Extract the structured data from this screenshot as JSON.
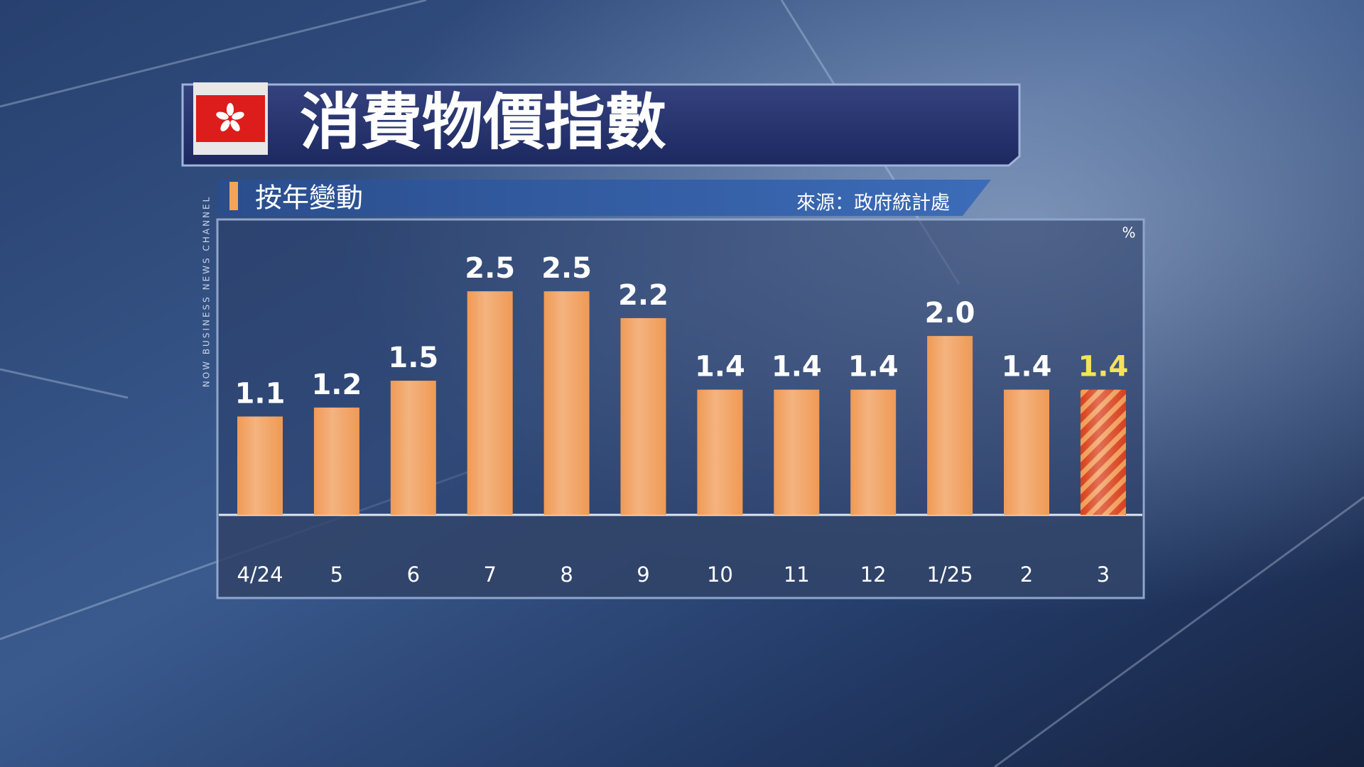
{
  "chart_data": {
    "type": "bar",
    "title": "消費物價指數",
    "subtitle": "按年變動",
    "source": "來源：政府統計處",
    "unit": "%",
    "channel": "NOW BUSINESS NEWS CHANNEL",
    "categories": [
      "4/24",
      "5",
      "6",
      "7",
      "8",
      "9",
      "10",
      "11",
      "12",
      "1/25",
      "2",
      "3"
    ],
    "values": [
      1.1,
      1.2,
      1.5,
      2.5,
      2.5,
      2.2,
      1.4,
      1.4,
      1.4,
      2.0,
      1.4,
      1.4
    ],
    "value_labels": [
      "1.1",
      "1.2",
      "1.5",
      "2.5",
      "2.5",
      "2.2",
      "1.4",
      "1.4",
      "1.4",
      "2.0",
      "1.4",
      "1.4"
    ],
    "color": "#f09a55",
    "colors": [
      "#f09a55",
      "#f09a55",
      "#f09a55",
      "#f09a55",
      "#f09a55",
      "#f09a55",
      "#f09a55",
      "#f09a55",
      "#f09a55",
      "#f09a55",
      "#f09a55",
      "#d8401c"
    ],
    "label_colors": [
      "#ffffff",
      "#ffffff",
      "#ffffff",
      "#ffffff",
      "#ffffff",
      "#ffffff",
      "#ffffff",
      "#ffffff",
      "#ffffff",
      "#ffffff",
      "#ffffff",
      "#f4e35a"
    ],
    "ylim": [
      0,
      3.2
    ]
  }
}
